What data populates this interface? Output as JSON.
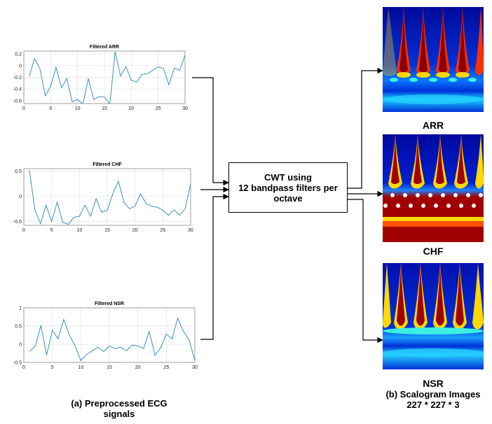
{
  "plots": [
    {
      "title": "Filtered ARR",
      "x": [
        1,
        2,
        3,
        4,
        5,
        6,
        7,
        8,
        9,
        10,
        11,
        12,
        13,
        14,
        15,
        16,
        17,
        18,
        19,
        20,
        21,
        22,
        23,
        24,
        25,
        26,
        27,
        28,
        29,
        30
      ],
      "y": [
        -0.18,
        0.12,
        -0.05,
        -0.52,
        -0.35,
        -0.03,
        -0.38,
        -0.22,
        -0.62,
        -0.58,
        -0.66,
        -0.22,
        -0.58,
        -0.53,
        -0.54,
        -0.66,
        0.24,
        -0.18,
        -0.02,
        -0.25,
        -0.28,
        -0.15,
        -0.14,
        -0.08,
        -0.02,
        -0.05,
        -0.33,
        -0.04,
        -0.08,
        0.18
      ],
      "xlim": [
        0,
        30
      ],
      "ylim": [
        -0.65,
        0.25
      ],
      "xticks": [
        0,
        5,
        10,
        15,
        20,
        25,
        30
      ],
      "yticks": [
        0.2,
        0,
        -0.2,
        -0.4,
        -0.6
      ],
      "ytick_labels": [
        "0.2",
        "0",
        "-0.2",
        "-0.4",
        "-0.6"
      ]
    },
    {
      "title": "Filtered CHF",
      "x": [
        1,
        2,
        3,
        4,
        5,
        6,
        7,
        8,
        9,
        10,
        11,
        12,
        13,
        14,
        15,
        16,
        17,
        18,
        19,
        20,
        21,
        22,
        23,
        24,
        25,
        26,
        27,
        28,
        29,
        30
      ],
      "y": [
        0.52,
        -0.28,
        -0.55,
        -0.18,
        -0.5,
        -0.12,
        -0.52,
        -0.56,
        -0.42,
        -0.4,
        -0.18,
        -0.4,
        -0.05,
        -0.32,
        -0.28,
        0.05,
        0.3,
        -0.12,
        -0.25,
        -0.2,
        0.05,
        -0.15,
        -0.2,
        -0.22,
        -0.28,
        -0.38,
        -0.27,
        -0.38,
        -0.25,
        0.25
      ],
      "xlim": [
        0,
        30
      ],
      "ylim": [
        -0.58,
        0.55
      ],
      "xticks": [
        0,
        5,
        10,
        15,
        20,
        25,
        30
      ],
      "yticks": [
        0.5,
        0,
        -0.5
      ],
      "ytick_labels": [
        "0.5",
        "0",
        "-0.5"
      ]
    },
    {
      "title": "Filtered NSR",
      "x": [
        1,
        2,
        3,
        4,
        5,
        6,
        7,
        8,
        9,
        10,
        11,
        12,
        13,
        14,
        15,
        16,
        17,
        18,
        19,
        20,
        21,
        22,
        23,
        24,
        25,
        26,
        27,
        28,
        29,
        30
      ],
      "y": [
        -0.2,
        -0.05,
        0.52,
        -0.3,
        0.38,
        0.15,
        0.68,
        0.25,
        -0.05,
        -0.45,
        -0.28,
        -0.18,
        -0.08,
        -0.2,
        -0.05,
        -0.12,
        -0.08,
        -0.18,
        -0.02,
        -0.05,
        -0.12,
        0.35,
        -0.3,
        -0.1,
        0.28,
        0.15,
        0.72,
        0.35,
        0.12,
        -0.45
      ],
      "xlim": [
        0,
        30
      ],
      "ylim": [
        -0.5,
        1
      ],
      "xticks": [
        0,
        5,
        10,
        15,
        20,
        25,
        30
      ],
      "yticks": [
        1,
        0.5,
        0,
        -0.5
      ],
      "ytick_labels": [
        "1",
        "0.5",
        "0",
        "-0.5"
      ]
    }
  ],
  "cwt_box": {
    "line1": "CWT using",
    "line2": "12 bandpass filters per",
    "line3": "octave"
  },
  "scalograms": [
    {
      "label": "ARR"
    },
    {
      "label": "CHF"
    },
    {
      "label": "NSR"
    }
  ],
  "caption_left": {
    "line1": "(a) Preprocessed ECG",
    "line2": "signals"
  },
  "caption_right": {
    "line1": "(b) Scalogram Images",
    "line2": "227 * 227 * 3"
  },
  "colors": {
    "signal": "#3d8fc2",
    "grid": "#e3e3e3",
    "axis": "#8a8a8a",
    "jet_dark": "#00008f",
    "jet_red": "#9c0000"
  }
}
